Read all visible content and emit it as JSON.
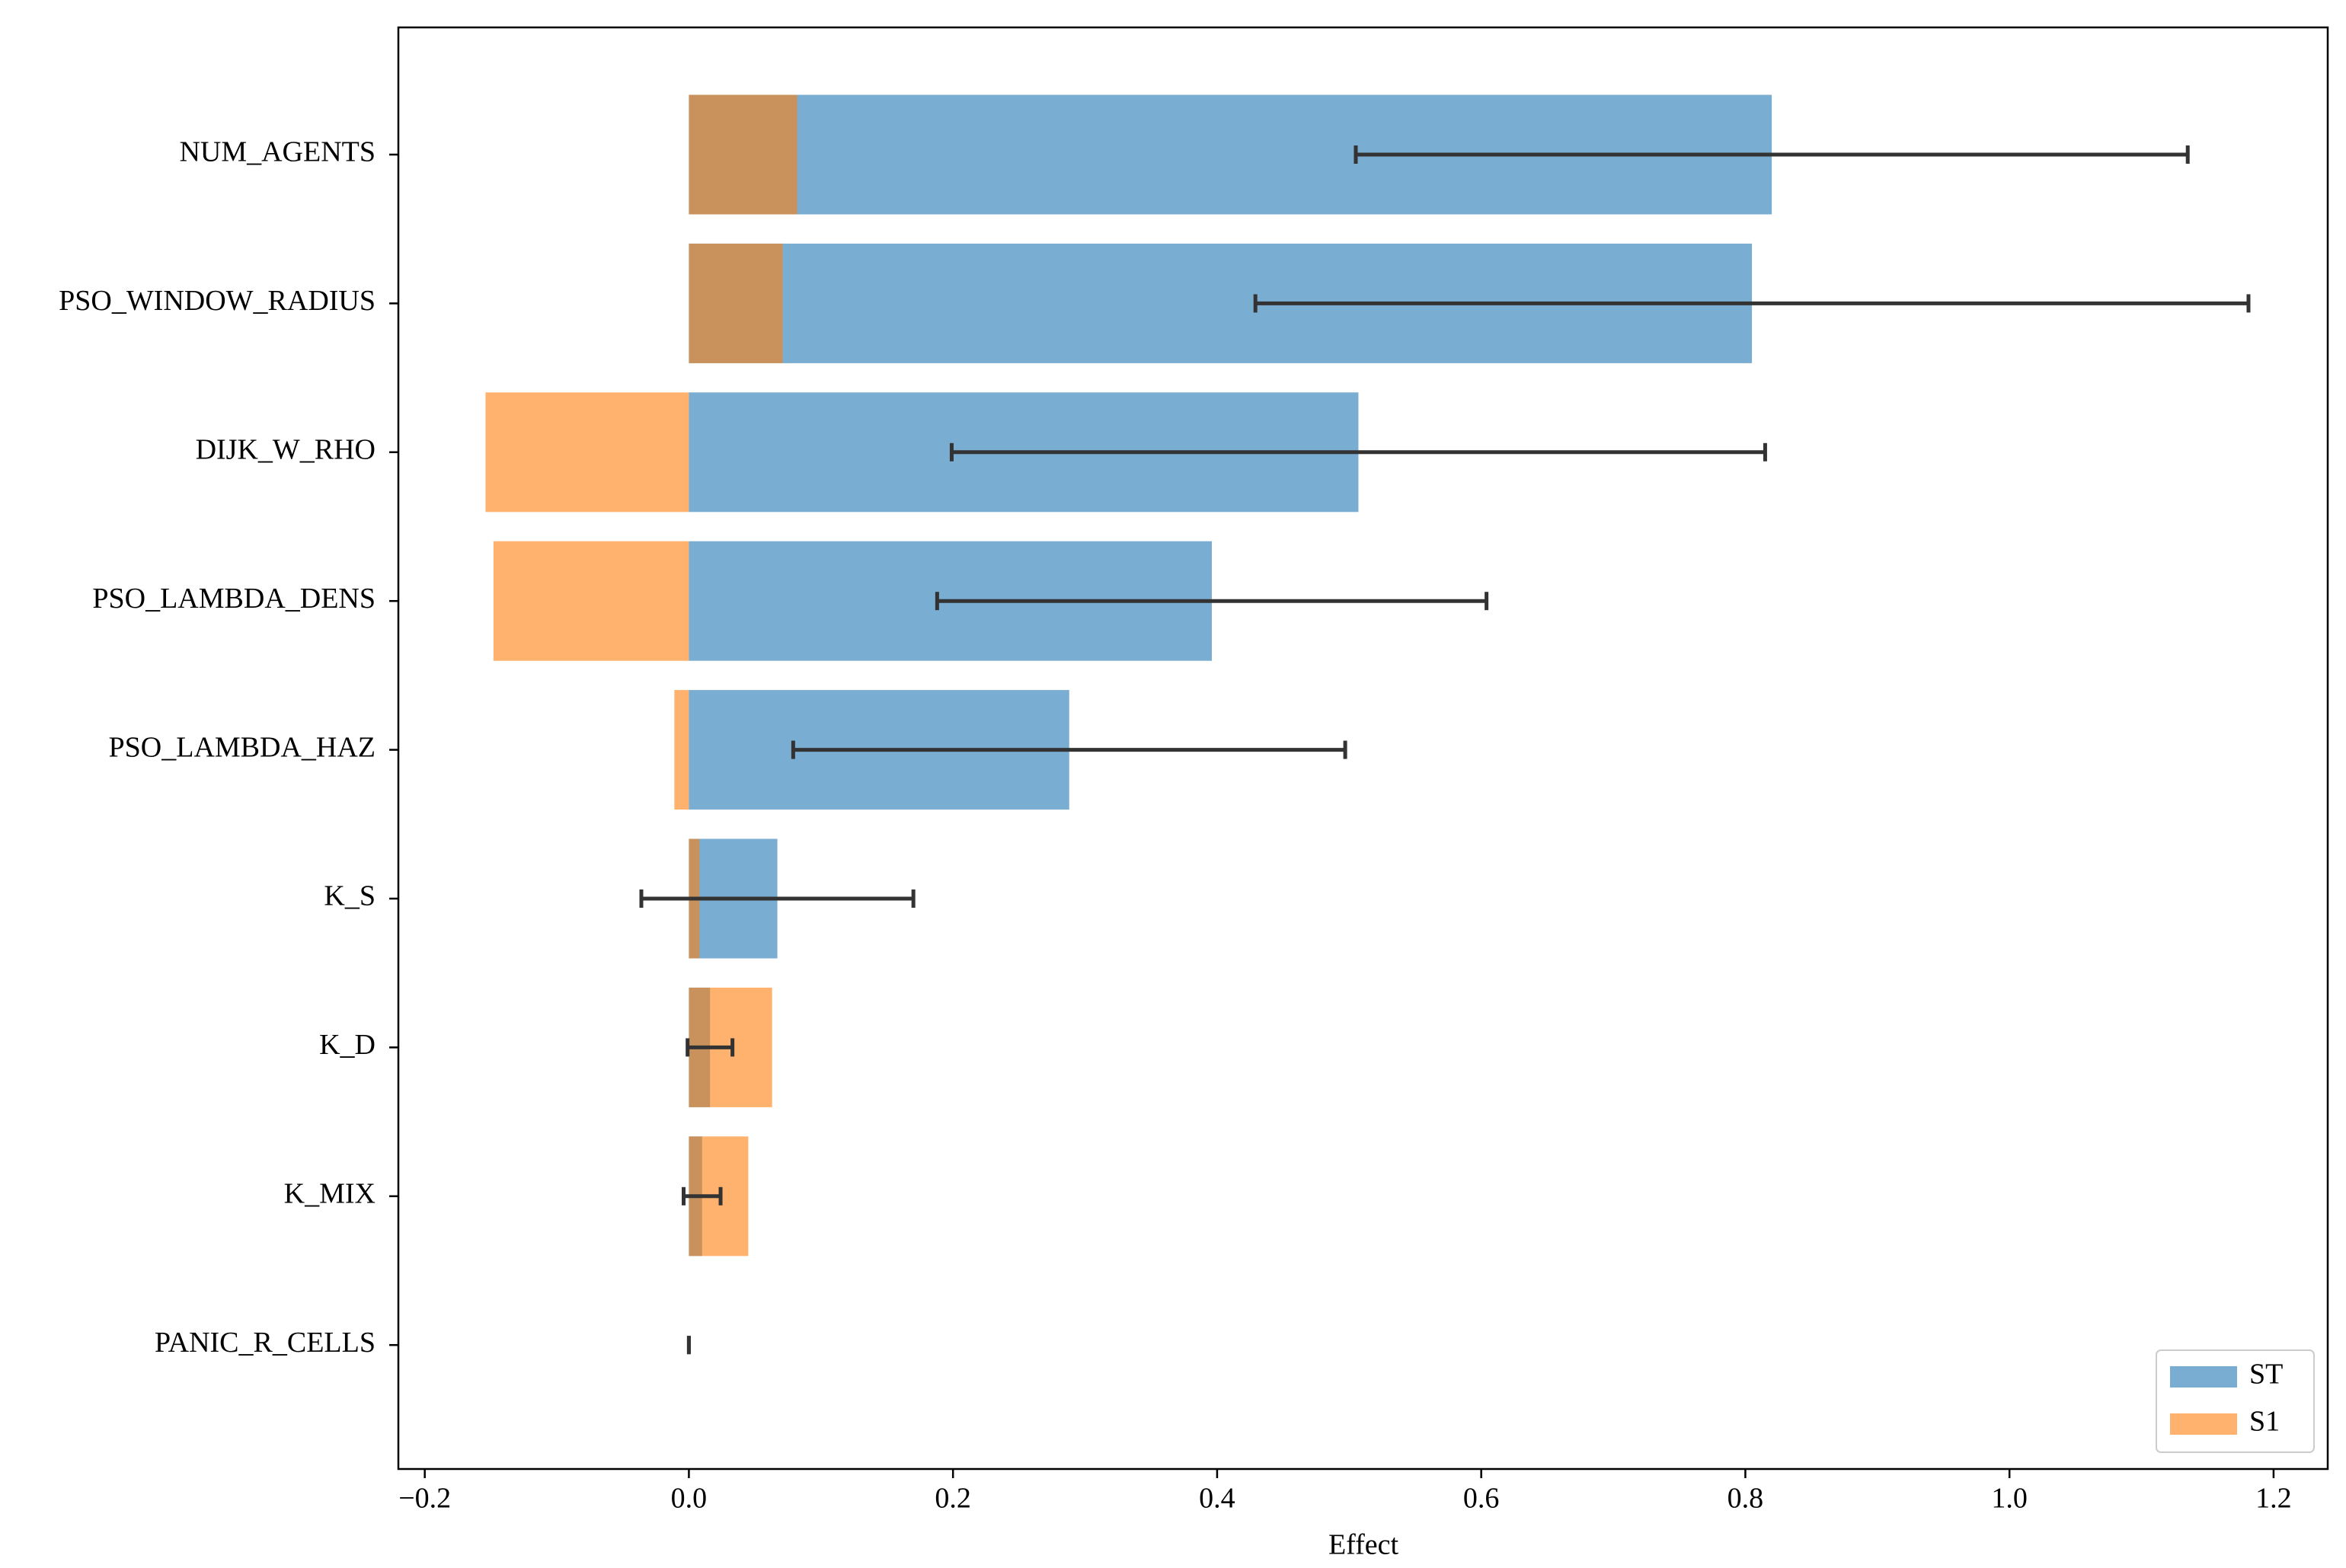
{
  "chart_data": {
    "type": "barh",
    "xlabel": "Effect",
    "categories": [
      "NUM_AGENTS",
      "PSO_WINDOW_RADIUS",
      "DIJK_W_RHO",
      "PSO_LAMBDA_DENS",
      "PSO_LAMBDA_HAZ",
      "K_S",
      "K_D",
      "K_MIX",
      "PANIC_R_CELLS"
    ],
    "series": [
      {
        "name": "ST",
        "color": "#1f77b4",
        "values": [
          0.82,
          0.805,
          0.507,
          0.396,
          0.288,
          0.067,
          0.016,
          0.01,
          0.0
        ],
        "errors": [
          0.315,
          0.376,
          0.308,
          0.208,
          0.209,
          0.103,
          0.017,
          0.014,
          0.0
        ]
      },
      {
        "name": "S1",
        "color": "#ff7f0e",
        "values": [
          0.082,
          0.071,
          -0.154,
          -0.148,
          -0.011,
          0.008,
          0.063,
          0.045,
          0.0
        ]
      }
    ],
    "xlim": [
      -0.22,
      1.241
    ],
    "xticks": [
      {
        "value": -0.2,
        "label": "−0.2"
      },
      {
        "value": 0,
        "label": "0.0"
      },
      0.2,
      0.4,
      0.6,
      0.8,
      {
        "value": 1,
        "label": "1.0"
      },
      1.2
    ],
    "legend": "lower right"
  }
}
